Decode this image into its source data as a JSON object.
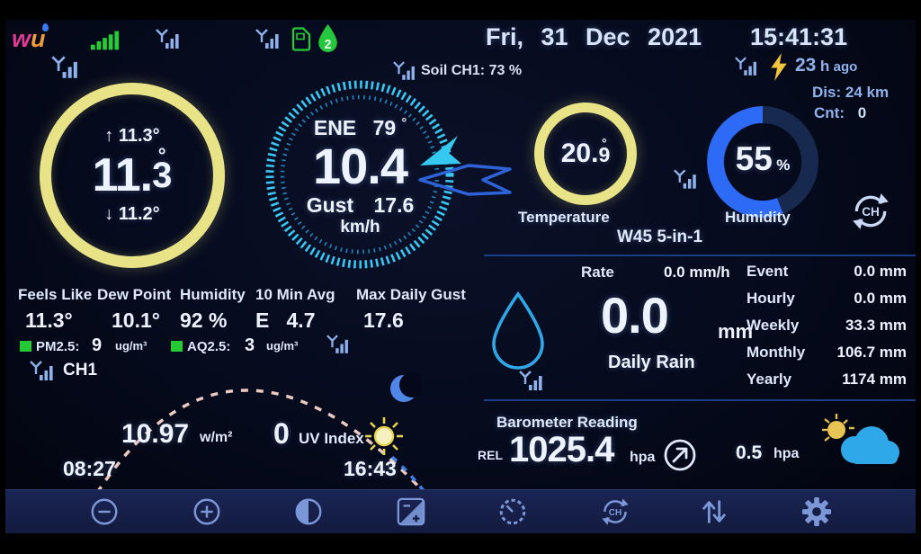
{
  "header": {
    "logo": "wu",
    "date": "Fri, 31 Dec 2021",
    "time": "15:41:31",
    "soil": {
      "label": "Soil CH1:",
      "value": "73 %"
    },
    "lightning": {
      "value": "23",
      "unit": "h",
      "suffix": "ago"
    },
    "distance": {
      "label": "Dis:",
      "value": "24 km"
    },
    "count": {
      "label": "Cnt:",
      "value": "0"
    }
  },
  "outdoor": {
    "high_arrow": "↑",
    "high": "11.3°",
    "main": "11.",
    "main_degree": "°",
    "main_decimal": "3",
    "low_arrow": "↓",
    "low": "11.2°"
  },
  "wind": {
    "direction": "ENE",
    "bearing": "79",
    "degree": "°",
    "speed": "10.4",
    "gust_label": "Gust",
    "gust": "17.6",
    "unit": "km/h"
  },
  "sensor_panel": {
    "temp_main": "20.",
    "temp_degree": "°",
    "temp_decimal": "9",
    "temp_label": "Temperature",
    "humidity_value": "55",
    "humidity_unit": "%",
    "humidity_label": "Humidity",
    "model": "W45 5-in-1"
  },
  "stats": {
    "columns": [
      {
        "label": "Feels Like",
        "value": "11.3°"
      },
      {
        "label": "Dew Point",
        "value": "10.1°"
      },
      {
        "label": "Humidity",
        "value": "92 %"
      },
      {
        "label": "10 Min Avg",
        "value": "E   4.7"
      },
      {
        "label": "Max Daily Gust",
        "value": "17.6"
      }
    ]
  },
  "air_quality": {
    "pm_label": "PM2.5:",
    "pm_value": "9",
    "pm_unit": "ug/m³",
    "aq_label": "AQ2.5:",
    "aq_value": "3",
    "aq_unit": "ug/m³"
  },
  "channel_label": "CH1",
  "solar": {
    "radiation_value": "10.97",
    "radiation_unit": "w/m²",
    "uv_value": "0",
    "uv_label": "UV Index",
    "sunrise": "08:27",
    "sunset": "16:43"
  },
  "rain": {
    "rate_label": "Rate",
    "rate_value": "0.0 mm/h",
    "daily_value": "0.0",
    "daily_unit": "mm",
    "daily_label": "Daily Rain",
    "rows": [
      {
        "label": "Event",
        "value": "0.0 mm"
      },
      {
        "label": "Hourly",
        "value": "0.0 mm"
      },
      {
        "label": "Weekly",
        "value": "33.3 mm"
      },
      {
        "label": "Monthly",
        "value": "106.7 mm"
      },
      {
        "label": "Yearly",
        "value": "1174 mm"
      }
    ]
  },
  "barometer": {
    "title": "Barometer Reading",
    "ref_label": "REL",
    "value": "1025.4",
    "unit": "hpa",
    "change_value": "0.5",
    "change_unit": "hpa"
  },
  "channel_cycle_text": "CH",
  "toolbar": {
    "icons": [
      "brightness-minus",
      "brightness-plus",
      "contrast",
      "exposure",
      "gauge",
      "channel-cycle",
      "data-exchange",
      "settings"
    ]
  },
  "colors": {
    "accent_yellow": "#e9e388",
    "accent_cyan": "#38c6f2",
    "accent_blue": "#2d6af5",
    "accent_green": "#24ca34",
    "text_white": "#eef4ff",
    "text_blue": "#8fb2ec",
    "toolbar_icon": "#7b97d8"
  }
}
